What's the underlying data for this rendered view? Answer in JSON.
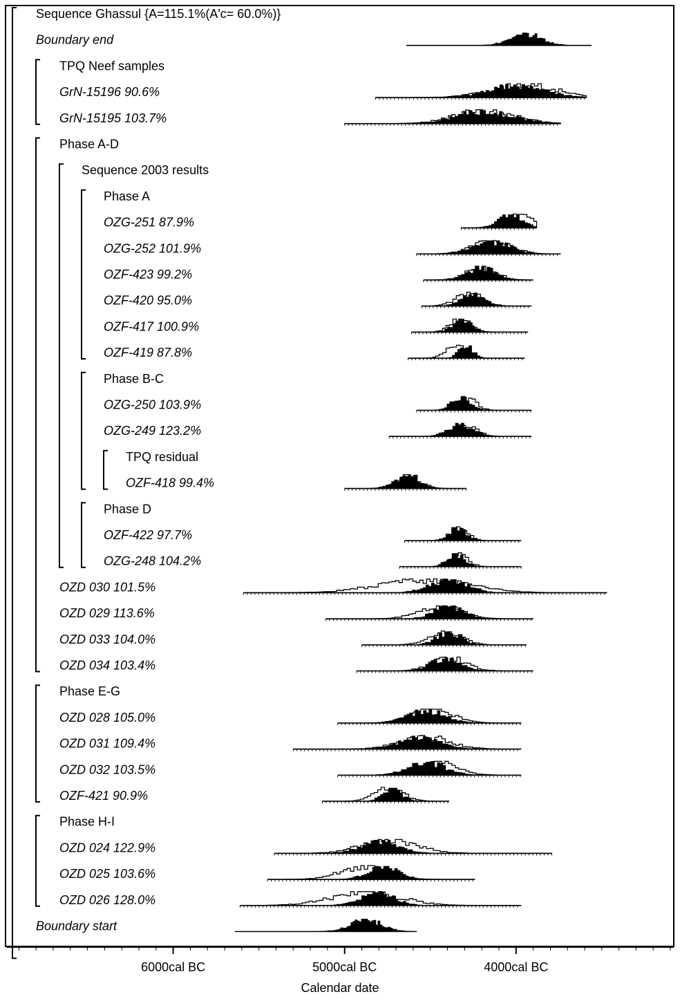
{
  "chart_data": {
    "type": "oxcal-multiplot",
    "xlabel": "Calendar date",
    "x_unit": "cal BC",
    "xlim": [
      6970,
      3080
    ],
    "ticks": [
      {
        "value": 6000,
        "label": "6000cal BC"
      },
      {
        "value": 5000,
        "label": "5000cal BC"
      },
      {
        "value": 4000,
        "label": "4000cal BC"
      }
    ],
    "colors": {
      "ink": "#000000",
      "background": "#ffffff"
    },
    "rows": [
      {
        "label": "Sequence Ghassul {A=115.1%(A'c= 60.0%)}",
        "kind": "group",
        "indent": 1
      },
      {
        "label": "Boundary end",
        "kind": "boundary",
        "indent": 1,
        "range": [
          4640,
          3560
        ],
        "posterior": {
          "mode": 3950,
          "sd": 90
        }
      },
      {
        "label": "TPQ Neef samples",
        "kind": "group",
        "indent": 2
      },
      {
        "label": "GrN-15196   90.6%",
        "kind": "sample",
        "indent": 2,
        "range": [
          4820,
          3590
        ],
        "likelihood": {
          "mode": 3960,
          "sd": 190
        },
        "posterior": {
          "mode": 4000,
          "sd": 160
        }
      },
      {
        "label": "GrN-15195  103.7%",
        "kind": "sample",
        "indent": 2,
        "range": [
          5000,
          3740
        ],
        "likelihood": {
          "mode": 4190,
          "sd": 170
        },
        "posterior": {
          "mode": 4190,
          "sd": 160
        }
      },
      {
        "label": "Phase A-D",
        "kind": "group",
        "indent": 2
      },
      {
        "label": "Sequence 2003 results",
        "kind": "group",
        "indent": 3
      },
      {
        "label": "Phase A",
        "kind": "group",
        "indent": 4
      },
      {
        "label": "OZG-251   87.9%",
        "kind": "sample",
        "indent": 4,
        "range": [
          4320,
          3880
        ],
        "likelihood": {
          "mode": 3990,
          "sd": 80
        },
        "posterior": {
          "mode": 4040,
          "sd": 70
        }
      },
      {
        "label": "OZG-252  101.9%",
        "kind": "sample",
        "indent": 4,
        "range": [
          4580,
          3740
        ],
        "likelihood": {
          "mode": 4150,
          "sd": 110
        },
        "posterior": {
          "mode": 4150,
          "sd": 105
        }
      },
      {
        "label": "OZF-423   99.2%",
        "kind": "sample",
        "indent": 4,
        "range": [
          4540,
          3900
        ],
        "likelihood": {
          "mode": 4210,
          "sd": 85
        },
        "posterior": {
          "mode": 4210,
          "sd": 80
        }
      },
      {
        "label": "OZF-420   95.0%",
        "kind": "sample",
        "indent": 4,
        "range": [
          4550,
          3910
        ],
        "likelihood": {
          "mode": 4280,
          "sd": 75
        },
        "posterior": {
          "mode": 4260,
          "sd": 65
        }
      },
      {
        "label": "OZF-417  100.9%",
        "kind": "sample",
        "indent": 4,
        "range": [
          4610,
          3930
        ],
        "likelihood": {
          "mode": 4330,
          "sd": 60
        },
        "posterior": {
          "mode": 4320,
          "sd": 55
        }
      },
      {
        "label": "OZF-419   87.8%",
        "kind": "sample",
        "indent": 4,
        "range": [
          4630,
          3950
        ],
        "likelihood": {
          "mode": 4360,
          "sd": 55
        },
        "posterior": {
          "mode": 4300,
          "sd": 40
        }
      },
      {
        "label": "Phase B-C",
        "kind": "group",
        "indent": 4
      },
      {
        "label": "OZG-250  103.9%",
        "kind": "sample",
        "indent": 4,
        "range": [
          4580,
          3910
        ],
        "likelihood": {
          "mode": 4300,
          "sd": 55
        },
        "posterior": {
          "mode": 4330,
          "sd": 55
        }
      },
      {
        "label": "OZG-249  123.2%",
        "kind": "sample",
        "indent": 4,
        "range": [
          4740,
          3910
        ],
        "likelihood": {
          "mode": 4300,
          "sd": 60
        },
        "posterior": {
          "mode": 4330,
          "sd": 70
        }
      },
      {
        "label": "TPQ residual",
        "kind": "group",
        "indent": 5
      },
      {
        "label": "OZF-418   99.4%",
        "kind": "sample",
        "indent": 5,
        "range": [
          5000,
          4290
        ],
        "likelihood": {
          "mode": 4640,
          "sd": 70
        },
        "posterior": {
          "mode": 4640,
          "sd": 70
        }
      },
      {
        "label": "Phase D",
        "kind": "group",
        "indent": 4
      },
      {
        "label": "OZF-422   97.7%",
        "kind": "sample",
        "indent": 4,
        "range": [
          4650,
          3970
        ],
        "likelihood": {
          "mode": 4340,
          "sd": 50
        },
        "posterior": {
          "mode": 4350,
          "sd": 50
        }
      },
      {
        "label": "OZG-248  104.2%",
        "kind": "sample",
        "indent": 4,
        "range": [
          4680,
          3970
        ],
        "likelihood": {
          "mode": 4340,
          "sd": 50
        },
        "posterior": {
          "mode": 4360,
          "sd": 50
        }
      },
      {
        "label": "OZD 030  101.5%",
        "kind": "sample",
        "indent": 2,
        "range": [
          5590,
          3470
        ],
        "likelihood": {
          "mode": 4550,
          "sd": 260
        },
        "posterior": {
          "mode": 4400,
          "sd": 110
        }
      },
      {
        "label": "OZD 029  113.6%",
        "kind": "sample",
        "indent": 2,
        "range": [
          5110,
          3900
        ],
        "likelihood": {
          "mode": 4450,
          "sd": 120
        },
        "posterior": {
          "mode": 4400,
          "sd": 85
        }
      },
      {
        "label": "OZD 033  104.0%",
        "kind": "sample",
        "indent": 2,
        "range": [
          4900,
          3940
        ],
        "likelihood": {
          "mode": 4420,
          "sd": 90
        },
        "posterior": {
          "mode": 4400,
          "sd": 70
        }
      },
      {
        "label": "OZD 034  103.4%",
        "kind": "sample",
        "indent": 2,
        "range": [
          4930,
          3900
        ],
        "likelihood": {
          "mode": 4400,
          "sd": 100
        },
        "posterior": {
          "mode": 4420,
          "sd": 85
        }
      },
      {
        "label": "Phase E-G",
        "kind": "group",
        "indent": 2
      },
      {
        "label": "OZD 028  105.0%",
        "kind": "sample",
        "indent": 2,
        "range": [
          5040,
          3970
        ],
        "likelihood": {
          "mode": 4500,
          "sd": 120
        },
        "posterior": {
          "mode": 4530,
          "sd": 110
        }
      },
      {
        "label": "OZD 031  109.4%",
        "kind": "sample",
        "indent": 2,
        "range": [
          5300,
          3970
        ],
        "likelihood": {
          "mode": 4540,
          "sd": 140
        },
        "posterior": {
          "mode": 4560,
          "sd": 115
        }
      },
      {
        "label": "OZD 032  103.5%",
        "kind": "sample",
        "indent": 2,
        "range": [
          5040,
          3970
        ],
        "likelihood": {
          "mode": 4480,
          "sd": 120
        },
        "posterior": {
          "mode": 4530,
          "sd": 110
        }
      },
      {
        "label": "OZF-421   90.9%",
        "kind": "sample",
        "indent": 2,
        "range": [
          5130,
          4390
        ],
        "likelihood": {
          "mode": 4750,
          "sd": 80
        },
        "posterior": {
          "mode": 4730,
          "sd": 55
        }
      },
      {
        "label": "Phase H-I",
        "kind": "group",
        "indent": 2
      },
      {
        "label": "OZD 024  122.9%",
        "kind": "sample",
        "indent": 2,
        "range": [
          5410,
          3790
        ],
        "likelihood": {
          "mode": 4750,
          "sd": 160
        },
        "posterior": {
          "mode": 4800,
          "sd": 110
        }
      },
      {
        "label": "OZD 025  103.6%",
        "kind": "sample",
        "indent": 2,
        "range": [
          5450,
          4240
        ],
        "likelihood": {
          "mode": 4900,
          "sd": 130
        },
        "posterior": {
          "mode": 4780,
          "sd": 90
        }
      },
      {
        "label": "OZD 026  128.0%",
        "kind": "sample",
        "indent": 2,
        "range": [
          5610,
          3970
        ],
        "likelihood": {
          "mode": 4880,
          "sd": 200
        },
        "posterior": {
          "mode": 4820,
          "sd": 100
        }
      },
      {
        "label": "Boundary start",
        "kind": "boundary",
        "indent": 1,
        "range": [
          5640,
          4580
        ],
        "posterior": {
          "mode": 4880,
          "sd": 90
        }
      }
    ],
    "brackets": [
      {
        "name": "sequence-ghassul",
        "from": 0,
        "to": 36,
        "depth": 0
      },
      {
        "name": "tpq-neef-samples",
        "from": 2,
        "to": 4,
        "depth": 1
      },
      {
        "name": "phase-a-d",
        "from": 5,
        "to": 25,
        "depth": 1
      },
      {
        "name": "sequence-2003-results",
        "from": 6,
        "to": 21,
        "depth": 2
      },
      {
        "name": "phase-a",
        "from": 7,
        "to": 13,
        "depth": 3
      },
      {
        "name": "phase-b-c",
        "from": 14,
        "to": 18,
        "depth": 3
      },
      {
        "name": "tpq-residual",
        "from": 17,
        "to": 18,
        "depth": 4
      },
      {
        "name": "phase-d",
        "from": 19,
        "to": 21,
        "depth": 3
      },
      {
        "name": "phase-e-g",
        "from": 26,
        "to": 30,
        "depth": 1
      },
      {
        "name": "phase-h-i",
        "from": 31,
        "to": 34,
        "depth": 1
      }
    ]
  }
}
